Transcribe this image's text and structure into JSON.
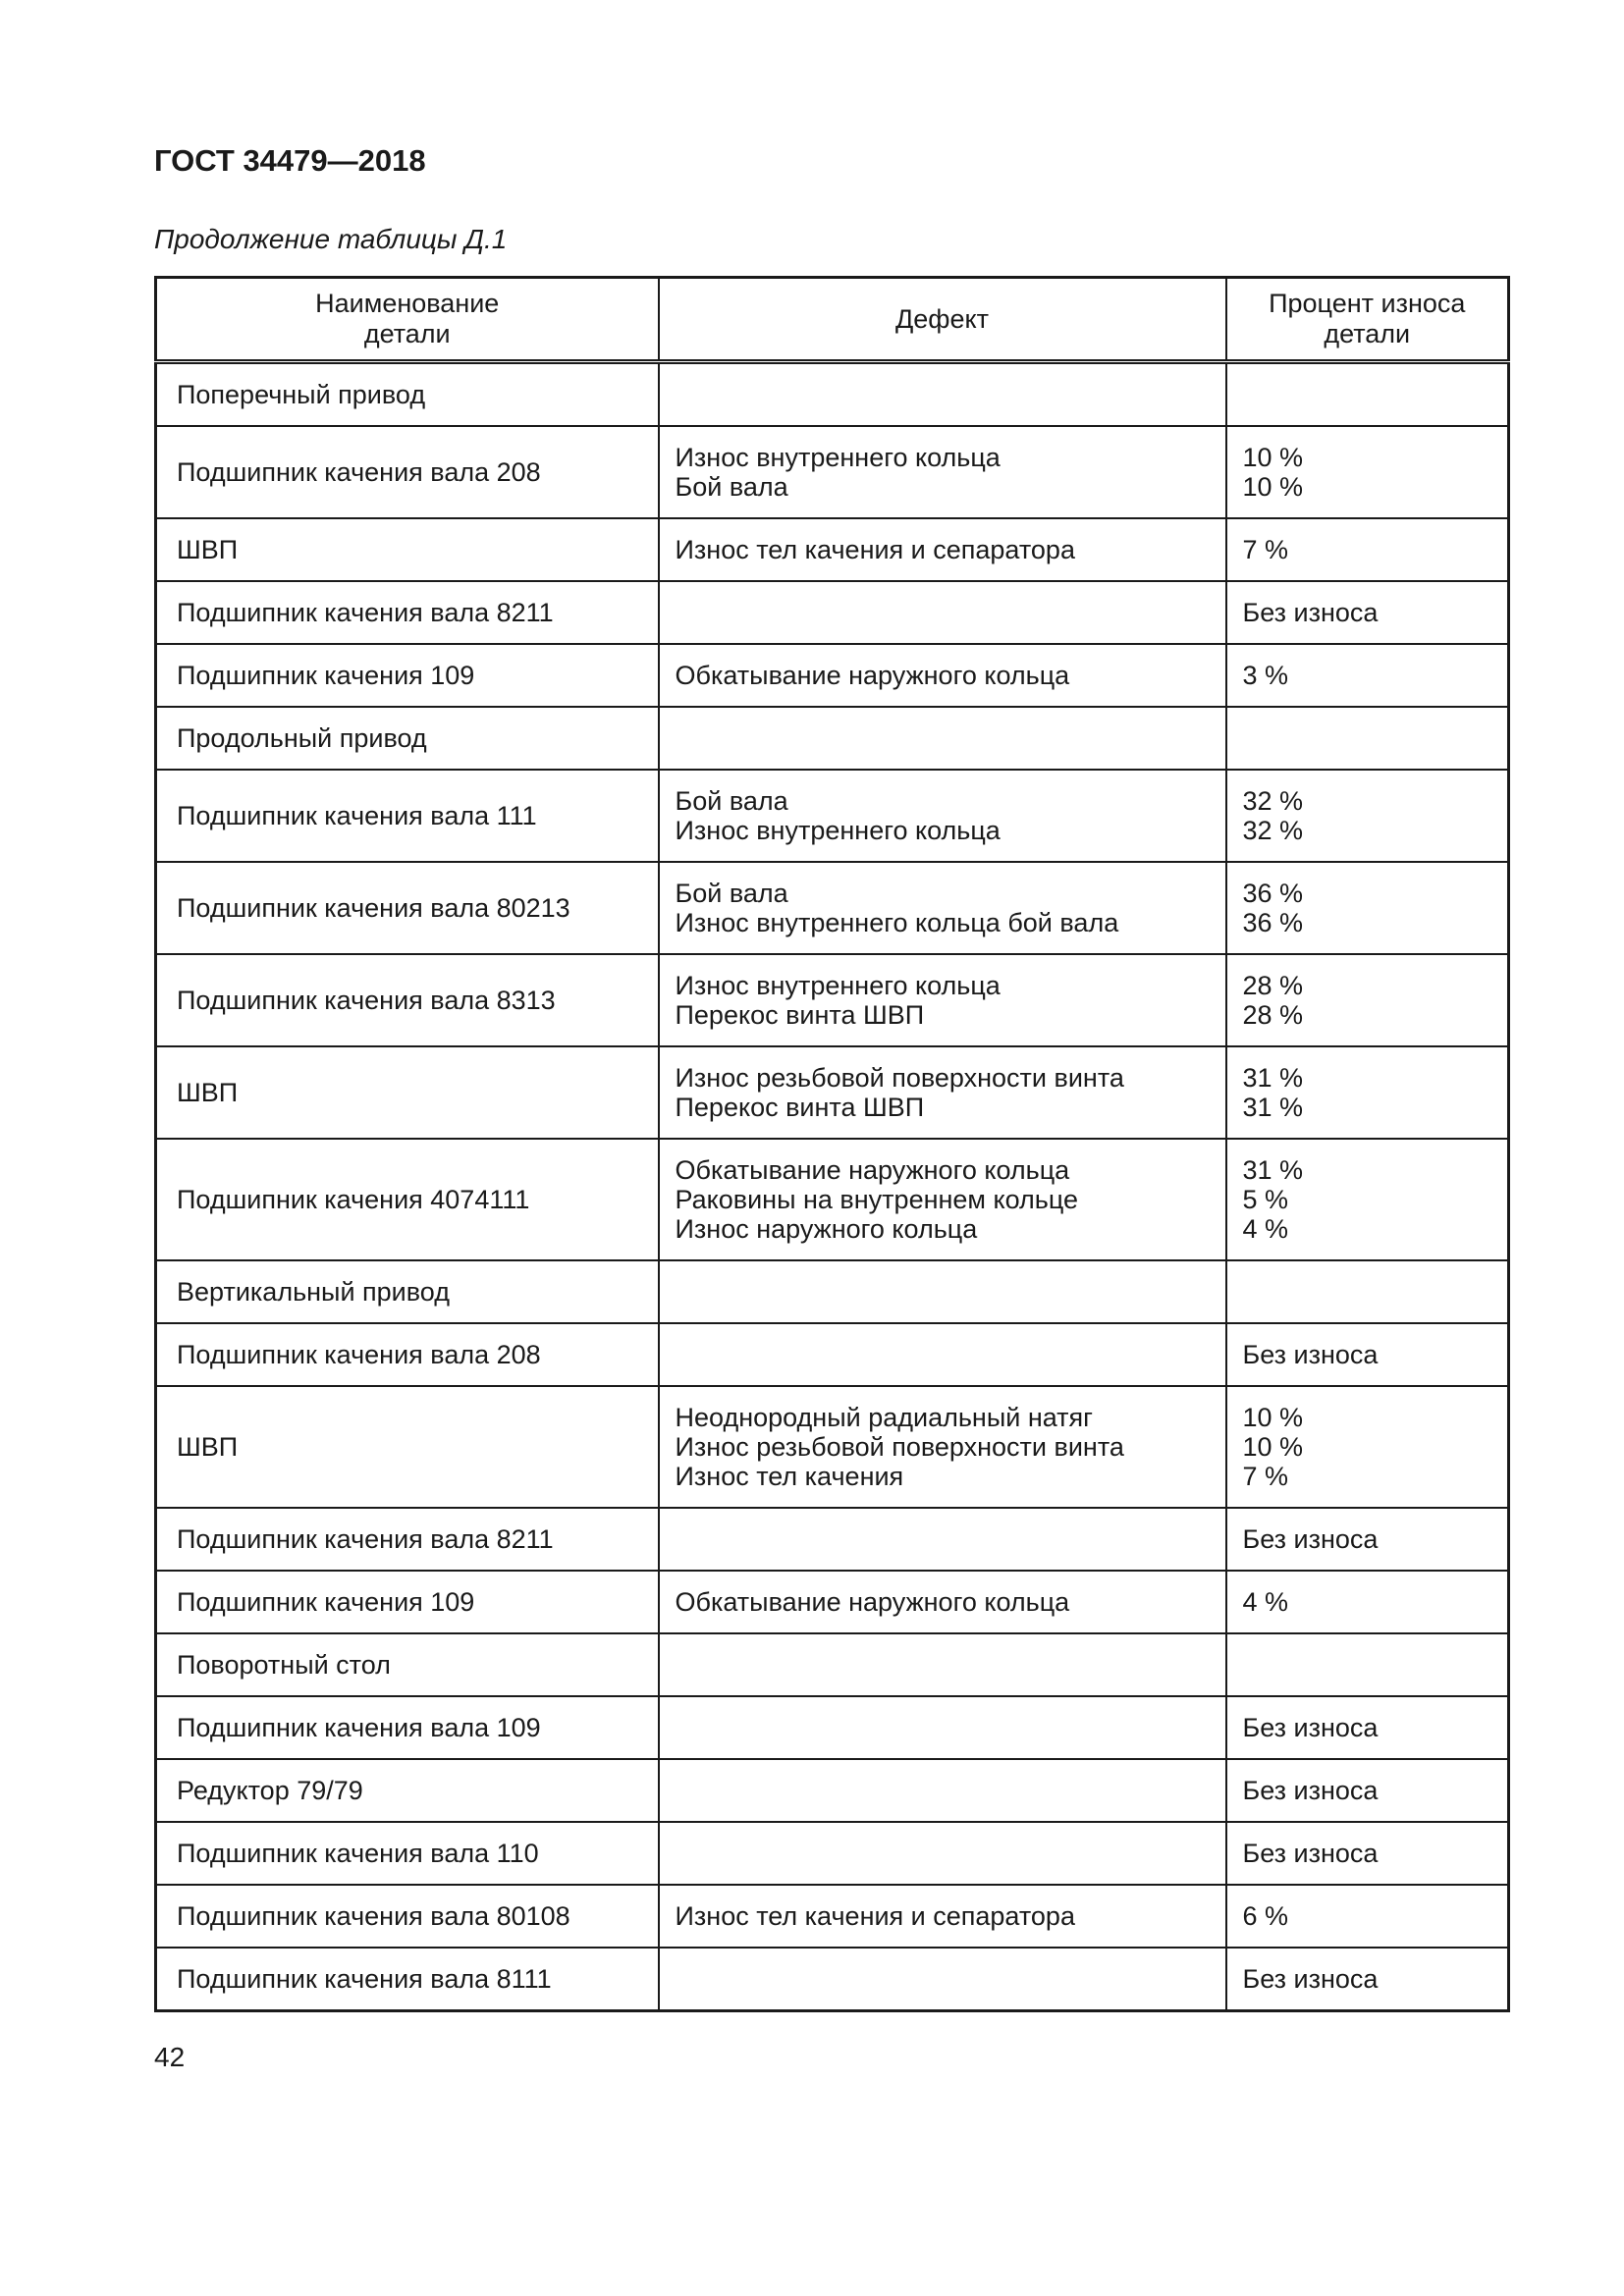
{
  "page": {
    "doc_number": "ГОСТ 34479—2018",
    "table_caption": "Продолжение таблицы Д.1",
    "page_number": "42"
  },
  "table": {
    "columns": [
      "Наименование\nдетали",
      "Дефект",
      "Процент износа\nдетали"
    ],
    "rows": [
      {
        "name": "Поперечный привод",
        "defects": [],
        "wear": []
      },
      {
        "name": "Подшипник качения вала 208",
        "defects": [
          "Износ внутреннего кольца",
          "Бой вала"
        ],
        "wear": [
          "10 %",
          "10 %"
        ]
      },
      {
        "name": "ШВП",
        "defects": [
          "Износ тел качения и сепаратора"
        ],
        "wear": [
          "7 %"
        ]
      },
      {
        "name": "Подшипник качения вала 8211",
        "defects": [],
        "wear": [
          "Без износа"
        ]
      },
      {
        "name": "Подшипник качения 109",
        "defects": [
          "Обкатывание наружного кольца"
        ],
        "wear": [
          "3 %"
        ]
      },
      {
        "name": "Продольный привод",
        "defects": [],
        "wear": []
      },
      {
        "name": "Подшипник качения вала 111",
        "defects": [
          "Бой вала",
          "Износ внутреннего кольца"
        ],
        "wear": [
          "32 %",
          "32 %"
        ]
      },
      {
        "name": "Подшипник качения вала 80213",
        "defects": [
          "Бой вала",
          "Износ внутреннего кольца бой вала"
        ],
        "wear": [
          "36 %",
          "36 %"
        ]
      },
      {
        "name": "Подшипник качения вала 8313",
        "defects": [
          "Износ внутреннего кольца",
          "Перекос винта ШВП"
        ],
        "wear": [
          "28 %",
          "28 %"
        ]
      },
      {
        "name": "ШВП",
        "defects": [
          "Износ резьбовой поверхности винта",
          "Перекос винта ШВП"
        ],
        "wear": [
          "31 %",
          "31 %"
        ]
      },
      {
        "name": "Подшипник качения 4074111",
        "defects": [
          "Обкатывание наружного кольца",
          "Раковины на внутреннем кольце",
          "Износ наружного кольца"
        ],
        "wear": [
          "31 %",
          "5 %",
          "4 %"
        ]
      },
      {
        "name": "Вертикальный привод",
        "defects": [],
        "wear": []
      },
      {
        "name": "Подшипник качения вала 208",
        "defects": [],
        "wear": [
          "Без износа"
        ]
      },
      {
        "name": "ШВП",
        "defects": [
          "Неоднородный радиальный натяг",
          "Износ резьбовой поверхности винта",
          "Износ тел качения"
        ],
        "wear": [
          "10 %",
          "10 %",
          "7 %"
        ]
      },
      {
        "name": "Подшипник качения вала 8211",
        "defects": [],
        "wear": [
          "Без износа"
        ]
      },
      {
        "name": "Подшипник качения 109",
        "defects": [
          "Обкатывание наружного кольца"
        ],
        "wear": [
          "4 %"
        ]
      },
      {
        "name": "Поворотный стол",
        "defects": [],
        "wear": []
      },
      {
        "name": "Подшипник качения вала 109",
        "defects": [],
        "wear": [
          "Без износа"
        ]
      },
      {
        "name": "Редуктор 79/79",
        "defects": [],
        "wear": [
          "Без износа"
        ]
      },
      {
        "name": "Подшипник качения вала 110",
        "defects": [],
        "wear": [
          "Без износа"
        ]
      },
      {
        "name": "Подшипник качения вала 80108",
        "defects": [
          "Износ тел качения и сепаратора"
        ],
        "wear": [
          "6 %"
        ]
      },
      {
        "name": "Подшипник качения вала 8111",
        "defects": [],
        "wear": [
          "Без износа"
        ]
      }
    ]
  }
}
